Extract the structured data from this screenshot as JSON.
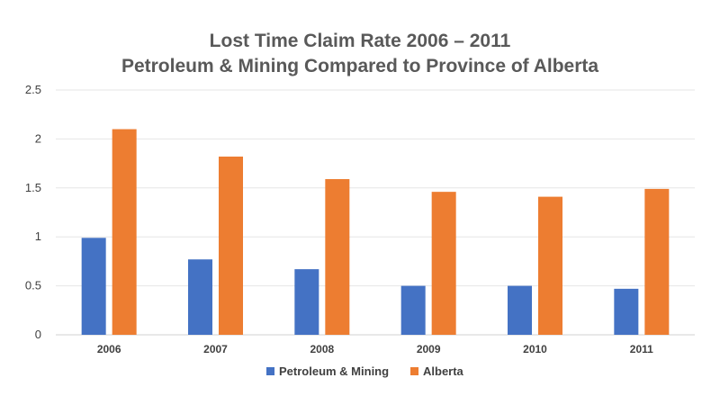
{
  "chart_data": {
    "type": "bar",
    "title": "Lost Time Claim Rate 2006 – 2011",
    "subtitle": "Petroleum & Mining Compared to Province of Alberta",
    "xlabel": "",
    "ylabel": "",
    "categories": [
      "2006",
      "2007",
      "2008",
      "2009",
      "2010",
      "2011"
    ],
    "series": [
      {
        "name": "Petroleum & Mining",
        "color": "#4472c4",
        "values": [
          0.99,
          0.77,
          0.67,
          0.5,
          0.5,
          0.47
        ]
      },
      {
        "name": "Alberta",
        "color": "#ed7d31",
        "values": [
          2.1,
          1.82,
          1.59,
          1.46,
          1.41,
          1.49
        ]
      }
    ],
    "ylim": [
      0,
      2.5
    ],
    "yticks": [
      "0",
      "0.5",
      "1",
      "1.5",
      "2",
      "2.5"
    ],
    "grid": true,
    "legend": "bottom"
  }
}
